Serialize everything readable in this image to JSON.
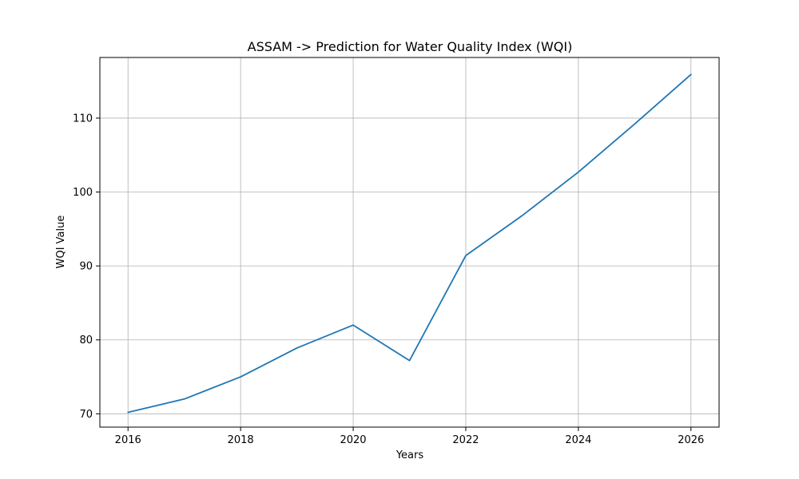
{
  "chart_data": {
    "type": "line",
    "title": "ASSAM -> Prediction for Water Quality Index (WQI)",
    "xlabel": "Years",
    "ylabel": "WQI Value",
    "xlim": [
      2015.5,
      2026.5
    ],
    "ylim": [
      68.2,
      118.2
    ],
    "xticks": [
      2016,
      2018,
      2020,
      2022,
      2024,
      2026
    ],
    "yticks": [
      70,
      80,
      90,
      100,
      110
    ],
    "grid": true,
    "x": [
      2016,
      2017,
      2018,
      2019,
      2020,
      2021,
      2022,
      2023,
      2024,
      2025,
      2026
    ],
    "series": [
      {
        "values": [
          70.2,
          72.0,
          75.0,
          78.9,
          82.0,
          77.2,
          91.4,
          96.8,
          102.7,
          109.2,
          115.9
        ],
        "color": "#1f77b4"
      }
    ]
  }
}
